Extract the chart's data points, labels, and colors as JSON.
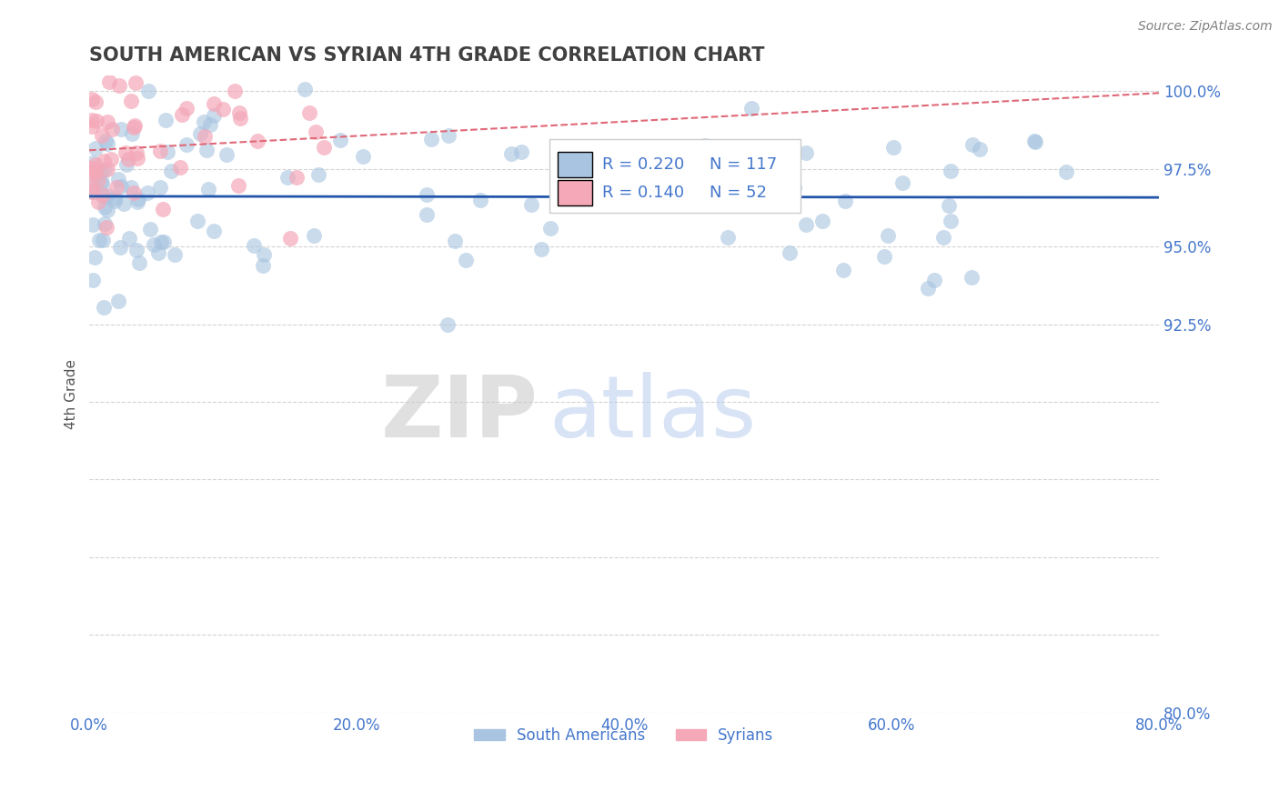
{
  "title": "SOUTH AMERICAN VS SYRIAN 4TH GRADE CORRELATION CHART",
  "source": "Source: ZipAtlas.com",
  "ylabel": "4th Grade",
  "xlim": [
    0.0,
    80.0
  ],
  "ylim": [
    80.0,
    100.5
  ],
  "blue_R": 0.22,
  "blue_N": 117,
  "pink_R": 0.14,
  "pink_N": 52,
  "blue_color": "#a8c4e0",
  "pink_color": "#f4a8b8",
  "blue_line_color": "#2255aa",
  "pink_line_color": "#e06878",
  "title_color": "#404040",
  "axis_color": "#4477cc",
  "watermark_zip": "ZIP",
  "watermark_atlas": "atlas",
  "legend_blue_label": "South Americans",
  "legend_pink_label": "Syrians",
  "yticks_right": [
    100.0,
    97.5,
    95.0,
    92.5,
    80.0
  ],
  "xticks": [
    0.0,
    20.0,
    40.0,
    60.0,
    80.0
  ]
}
